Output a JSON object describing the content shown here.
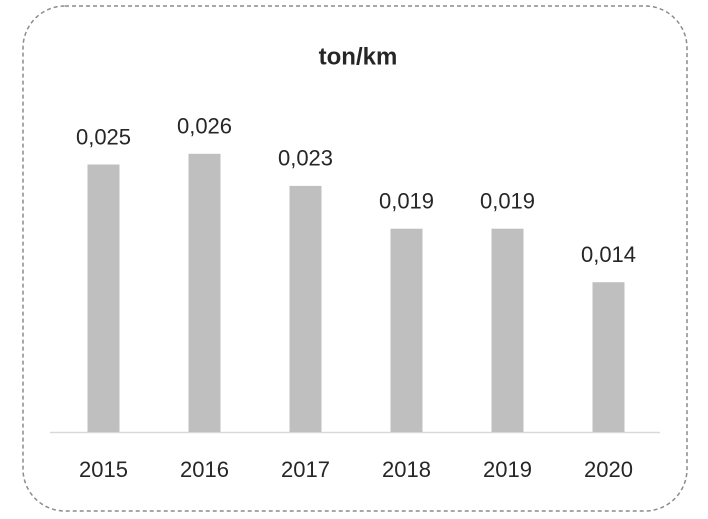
{
  "chart_data": {
    "type": "bar",
    "title": "ton/km",
    "categories": [
      "2015",
      "2016",
      "2017",
      "2018",
      "2019",
      "2020"
    ],
    "values": [
      0.025,
      0.026,
      0.023,
      0.019,
      0.019,
      0.014
    ],
    "value_labels": [
      "0,025",
      "0,026",
      "0,023",
      "0,019",
      "0,019",
      "0,014"
    ],
    "color": "#bfbfbf"
  }
}
